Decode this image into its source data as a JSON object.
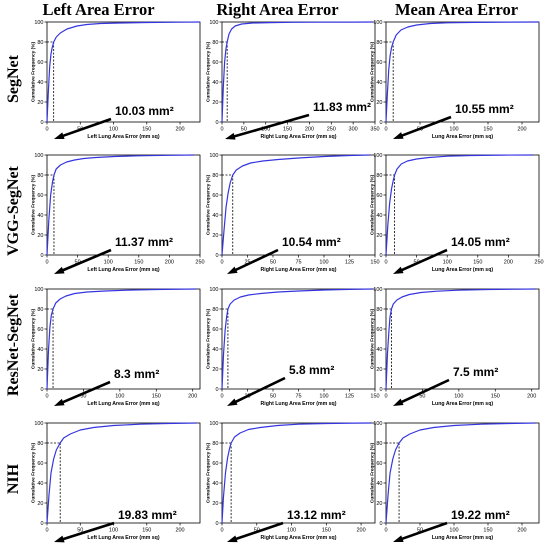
{
  "column_titles": [
    "Left Area Error",
    "Right Area Error",
    "Mean Area Error"
  ],
  "row_titles": [
    "SegNet",
    "VGG-SegNet",
    "ResNet-SegNet",
    "NIH"
  ],
  "colors": {
    "curve": "#3535e0",
    "guide": "#000000",
    "frame": "#000000"
  },
  "chart_data": [
    {
      "type": "line",
      "row": "SegNet",
      "col": "Left Area Error",
      "xlabel": "Left Lung Area Error (mm sq)",
      "ylabel": "Cumulative Frequency (%)",
      "xlim": [
        0,
        230
      ],
      "ylim": [
        0,
        100
      ],
      "xticks": [
        0,
        50,
        100,
        150,
        200
      ],
      "yticks": [
        0,
        20,
        40,
        60,
        80,
        100
      ],
      "x": [
        0,
        2,
        4,
        6,
        8,
        10.03,
        14,
        20,
        30,
        45,
        60,
        80,
        110,
        150,
        200,
        230
      ],
      "y": [
        0,
        30,
        55,
        68,
        75,
        80,
        85,
        89,
        93,
        96,
        97.5,
        98.5,
        99,
        99.5,
        99.8,
        100
      ],
      "threshold": 80,
      "annotation": "10.03 mm²"
    },
    {
      "type": "line",
      "row": "SegNet",
      "col": "Right Area Error",
      "xlabel": "Right Lung Area Error (mm sq)",
      "ylabel": "Cumulative Frequency (%)",
      "xlim": [
        0,
        350
      ],
      "ylim": [
        0,
        100
      ],
      "xticks": [
        0,
        50,
        100,
        150,
        200,
        250,
        300,
        350
      ],
      "yticks": [
        0,
        20,
        40,
        60,
        80,
        100
      ],
      "x": [
        0,
        3,
        6,
        9,
        11.83,
        16,
        22,
        30,
        45,
        70,
        110,
        160,
        220,
        300,
        345
      ],
      "y": [
        0,
        35,
        60,
        73,
        80,
        88,
        93,
        96,
        98,
        99,
        99.4,
        99.7,
        99.8,
        99.9,
        100
      ],
      "threshold": 80,
      "annotation": "11.83 mm²"
    },
    {
      "type": "line",
      "row": "SegNet",
      "col": "Mean Area Error",
      "xlabel": "Lung Area Error (mm sq)",
      "ylabel": "Cumulative Frequency (%)",
      "xlim": [
        0,
        225
      ],
      "ylim": [
        0,
        100
      ],
      "xticks": [
        0,
        50,
        100,
        150,
        200
      ],
      "yticks": [
        0,
        20,
        40,
        60,
        80,
        100
      ],
      "x": [
        0,
        2,
        4,
        6,
        8,
        10.55,
        15,
        22,
        32,
        45,
        65,
        90,
        130,
        180,
        225
      ],
      "y": [
        0,
        28,
        52,
        66,
        74,
        80,
        87,
        92,
        95,
        97,
        98.5,
        99.2,
        99.6,
        99.9,
        100
      ],
      "threshold": 80,
      "annotation": "10.55 mm²"
    },
    {
      "type": "line",
      "row": "VGG-SegNet",
      "col": "Left Area Error",
      "xlabel": "Left Lung Area Error (mm sq)",
      "ylabel": "Cumulative Frequency (%)",
      "xlim": [
        0,
        250
      ],
      "ylim": [
        0,
        100
      ],
      "xticks": [
        0,
        50,
        100,
        150,
        200,
        250
      ],
      "yticks": [
        0,
        20,
        40,
        60,
        80,
        100
      ],
      "x": [
        0,
        3,
        6,
        9,
        11.37,
        15,
        22,
        32,
        45,
        60,
        80,
        110,
        150,
        200,
        240
      ],
      "y": [
        0,
        35,
        60,
        73,
        80,
        86,
        90,
        93,
        95,
        96.5,
        97.5,
        98.5,
        99.2,
        99.7,
        100
      ],
      "threshold": 80,
      "annotation": "11.37 mm²"
    },
    {
      "type": "line",
      "row": "VGG-SegNet",
      "col": "Right Area Error",
      "xlabel": "Right Lung Area Error (mm sq)",
      "ylabel": "Cumulative Frequency (%)",
      "xlim": [
        0,
        150
      ],
      "ylim": [
        0,
        100
      ],
      "xticks": [
        0,
        25,
        50,
        75,
        100,
        125,
        150
      ],
      "yticks": [
        0,
        20,
        40,
        60,
        80,
        100
      ],
      "x": [
        0,
        2,
        4,
        6,
        8,
        10.54,
        14,
        20,
        28,
        40,
        55,
        75,
        100,
        125,
        145
      ],
      "y": [
        0,
        25,
        48,
        62,
        72,
        80,
        85,
        89,
        92,
        94,
        95.5,
        97,
        98.5,
        99.5,
        100
      ],
      "threshold": 80,
      "annotation": "10.54 mm²"
    },
    {
      "type": "line",
      "row": "VGG-SegNet",
      "col": "Mean Area Error",
      "xlabel": "Lung Area Error (mm sq)",
      "ylabel": "Cumulative Frequency (%)",
      "xlim": [
        0,
        250
      ],
      "ylim": [
        0,
        100
      ],
      "xticks": [
        0,
        50,
        100,
        150,
        200,
        250
      ],
      "yticks": [
        0,
        20,
        40,
        60,
        80,
        100
      ],
      "x": [
        0,
        3,
        6,
        9,
        12,
        14.05,
        18,
        25,
        35,
        50,
        70,
        100,
        140,
        190,
        240
      ],
      "y": [
        0,
        30,
        52,
        66,
        75,
        80,
        86,
        91,
        94,
        96,
        97.5,
        98.8,
        99.5,
        99.9,
        100
      ],
      "threshold": 80,
      "annotation": "14.05 mm²"
    },
    {
      "type": "line",
      "row": "ResNet-SegNet",
      "col": "Left Area Error",
      "xlabel": "Left Lung Area Error (mm sq)",
      "ylabel": "Cumulative Frequency (%)",
      "xlim": [
        0,
        210
      ],
      "ylim": [
        0,
        100
      ],
      "xticks": [
        0,
        50,
        100,
        150,
        200
      ],
      "yticks": [
        0,
        20,
        40,
        60,
        80,
        100
      ],
      "x": [
        0,
        2,
        4,
        6,
        8.3,
        12,
        18,
        26,
        38,
        55,
        80,
        110,
        150,
        205
      ],
      "y": [
        0,
        38,
        62,
        74,
        80,
        86,
        90,
        93,
        95.5,
        97,
        98,
        98.8,
        99.5,
        100
      ],
      "threshold": 80,
      "annotation": "8.3 mm²"
    },
    {
      "type": "line",
      "row": "ResNet-SegNet",
      "col": "Right Area Error",
      "xlabel": "Right Lung Area Error (mm sq)",
      "ylabel": "Cumulative Frequency (%)",
      "xlim": [
        0,
        150
      ],
      "ylim": [
        0,
        100
      ],
      "xticks": [
        0,
        25,
        50,
        75,
        100,
        125,
        150
      ],
      "yticks": [
        0,
        20,
        40,
        60,
        80,
        100
      ],
      "x": [
        0,
        1.5,
        3,
        4.5,
        5.8,
        8,
        12,
        18,
        26,
        38,
        55,
        75,
        100,
        125,
        148
      ],
      "y": [
        0,
        35,
        58,
        72,
        80,
        85,
        89,
        92,
        94,
        95.5,
        97,
        98,
        99,
        99.6,
        100
      ],
      "threshold": 80,
      "annotation": "5.8 mm²"
    },
    {
      "type": "line",
      "row": "ResNet-SegNet",
      "col": "Mean Area Error",
      "xlabel": "Lung Area Error (mm sq)",
      "ylabel": "Cumulative Frequency (%)",
      "xlim": [
        0,
        210
      ],
      "ylim": [
        0,
        100
      ],
      "xticks": [
        0,
        50,
        100,
        150,
        200
      ],
      "yticks": [
        0,
        20,
        40,
        60,
        80,
        100
      ],
      "x": [
        0,
        2,
        4,
        5.5,
        7.5,
        10,
        15,
        22,
        32,
        48,
        70,
        100,
        140,
        205
      ],
      "y": [
        0,
        35,
        58,
        72,
        80,
        85,
        89,
        92,
        94.5,
        96.5,
        97.8,
        98.8,
        99.5,
        100
      ],
      "threshold": 80,
      "annotation": "7.5 mm²"
    },
    {
      "type": "line",
      "row": "NIH",
      "col": "Left Area Error",
      "xlabel": "Left Lung Area Error (mm sq)",
      "ylabel": "Cumulative Frequency (%)",
      "xlim": [
        0,
        230
      ],
      "ylim": [
        0,
        100
      ],
      "xticks": [
        0,
        50,
        100,
        150,
        200
      ],
      "yticks": [
        0,
        20,
        40,
        60,
        80,
        100
      ],
      "x": [
        0,
        3,
        6,
        10,
        14,
        19.83,
        25,
        35,
        50,
        70,
        100,
        140,
        180,
        225
      ],
      "y": [
        0,
        28,
        50,
        64,
        73,
        80,
        85,
        89,
        93,
        95.5,
        97.5,
        98.8,
        99.5,
        100
      ],
      "threshold": 80,
      "annotation": "19.83 mm²"
    },
    {
      "type": "line",
      "row": "NIH",
      "col": "Right Area Error",
      "xlabel": "Right Lung Area Error (mm sq)",
      "ylabel": "Cumulative Frequency (%)",
      "xlim": [
        0,
        220
      ],
      "ylim": [
        0,
        100
      ],
      "xticks": [
        0,
        50,
        100,
        150,
        200
      ],
      "yticks": [
        0,
        20,
        40,
        60,
        80,
        100
      ],
      "x": [
        0,
        2,
        5,
        8,
        11,
        13.12,
        18,
        26,
        38,
        55,
        80,
        110,
        150,
        190,
        215
      ],
      "y": [
        0,
        25,
        50,
        65,
        75,
        80,
        86,
        90,
        93.5,
        95.5,
        97.5,
        98.8,
        99.5,
        99.9,
        100
      ],
      "threshold": 80,
      "annotation": "13.12 mm²"
    },
    {
      "type": "line",
      "row": "NIH",
      "col": "Mean Area Error",
      "xlabel": "Lung Area Error (mm sq)",
      "ylabel": "Cumulative Frequency (%)",
      "xlim": [
        0,
        225
      ],
      "ylim": [
        0,
        100
      ],
      "xticks": [
        0,
        50,
        100,
        150,
        200
      ],
      "yticks": [
        0,
        20,
        40,
        60,
        80,
        100
      ],
      "x": [
        0,
        3,
        6,
        10,
        14,
        19.22,
        25,
        35,
        50,
        70,
        100,
        140,
        180,
        220
      ],
      "y": [
        0,
        28,
        50,
        64,
        73,
        80,
        85,
        89,
        93,
        95.5,
        97.5,
        98.8,
        99.5,
        100
      ],
      "threshold": 80,
      "annotation": "19.22 mm²"
    }
  ]
}
